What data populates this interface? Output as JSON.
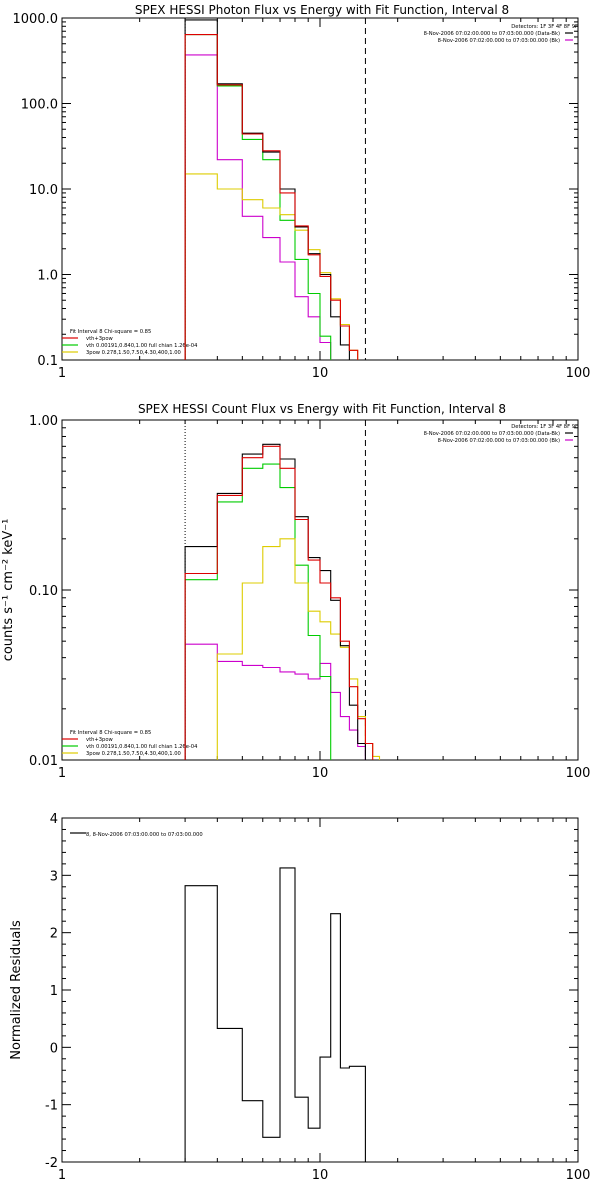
{
  "chart_data": [
    {
      "type": "line",
      "title": "SPEX HESSI Photon Flux vs Energy with Fit Function, Interval 8",
      "xlabel": "",
      "ylabel": "",
      "xscale": "log",
      "yscale": "log",
      "xlim": [
        1,
        100
      ],
      "ylim": [
        0.1,
        1000
      ],
      "xticks": [
        "1",
        "10",
        "100"
      ],
      "yticks": [
        "0.1",
        "1.0",
        "10.0",
        "100.0",
        "1000.0"
      ],
      "info_lines": [
        "Detectors: 1F 3F 4F 8F 9F",
        "8-Nov-2006 07:02:00.000 to 07:03:00.000 (Data-Bk)",
        "8-Nov-2006 07:02:00.000 to 07:03:00.000 (Bk)"
      ],
      "legend": [
        "Fit Interval 8   Chi-square = 0.85",
        "vth+3pow",
        "vth 0.00191,0.840,1.00   full chian 1.26e-04",
        "3pow 0.278,1.50,7.50,4.30,400,1.00"
      ],
      "edges": [
        3,
        4,
        5,
        6,
        7,
        8,
        9,
        10,
        11,
        12,
        13,
        14,
        15,
        16,
        17
      ],
      "threshold_lines": {
        "dotted_x": 3,
        "dashed_x": 15
      },
      "series": [
        {
          "name": "8-Nov-2006 07:02:00.000 to 07:03:00.000 (Data-Bk)",
          "color": "#000000",
          "values": [
            950,
            170,
            45,
            27,
            10,
            3.6,
            1.75,
            1.0,
            0.32,
            0.15,
            null,
            null,
            null,
            null
          ]
        },
        {
          "name": "8-Nov-2006 07:02:00.000 to 07:03:00.000 (Bk)",
          "color": "#cc00cc",
          "values": [
            370,
            22,
            4.8,
            2.7,
            1.4,
            0.55,
            0.32,
            0.16,
            null,
            null,
            null,
            null,
            null,
            null
          ]
        },
        {
          "name": "vth+3pow",
          "color": "#dd0000",
          "values": [
            640,
            165,
            44,
            28,
            9,
            3.7,
            1.7,
            0.95,
            0.5,
            0.25,
            0.13,
            null,
            null,
            null
          ]
        },
        {
          "name": "vth 0.00191,0.840,1.00   full chian 1.26e-04",
          "color": "#00cc00",
          "values": [
            640,
            160,
            38,
            22,
            4.3,
            1.5,
            0.6,
            0.19,
            null,
            null,
            null,
            null,
            null,
            null
          ]
        },
        {
          "name": "3pow 0.278,1.50,7.50,4.30,400,1.00",
          "color": "#ddcc00",
          "values": [
            15,
            10,
            7.5,
            6,
            5,
            3.3,
            1.95,
            1.05,
            0.52,
            0.26,
            0.13,
            null,
            null,
            null
          ]
        }
      ]
    },
    {
      "type": "line",
      "title": "SPEX HESSI Count Flux vs Energy with Fit Function, Interval 8",
      "xlabel": "",
      "ylabel": "counts s⁻¹ cm⁻² keV⁻¹",
      "xscale": "log",
      "yscale": "log",
      "xlim": [
        1,
        100
      ],
      "ylim": [
        0.01,
        1.0
      ],
      "xticks": [
        "1",
        "10",
        "100"
      ],
      "yticks": [
        "0.01",
        "0.10",
        "1.00"
      ],
      "info_lines": [
        "Detectors: 1F 3F 4F 8F 9F",
        "8-Nov-2006 07:02:00.000 to 07:03:00.000 (Data-Bk)",
        "8-Nov-2006 07:02:00.000 to 07:03:00.000 (Bk)"
      ],
      "legend": [
        "Fit Interval 8   Chi-square = 0.85",
        "vth+3pow",
        "vth 0.00191,0.840,1.00   full chian 1.26e-04",
        "3pow 0.278,1.50,7.50,4.30,400,1.00"
      ],
      "edges": [
        3,
        4,
        5,
        6,
        7,
        8,
        9,
        10,
        11,
        12,
        13,
        14,
        15,
        16,
        17
      ],
      "threshold_lines": {
        "dotted_x": 3,
        "dashed_x": 15
      },
      "series": [
        {
          "name": "8-Nov-2006 07:02:00.000 to 07:03:00.000 (Data-Bk)",
          "color": "#000000",
          "values": [
            0.18,
            0.37,
            0.63,
            0.72,
            0.59,
            0.27,
            0.155,
            0.13,
            0.087,
            0.047,
            0.021,
            0.0125,
            null,
            null
          ]
        },
        {
          "name": "8-Nov-2006 07:02:00.000 to 07:03:00.000 (Bk)",
          "color": "#cc00cc",
          "values": [
            0.048,
            0.038,
            0.036,
            0.035,
            0.033,
            0.032,
            0.03,
            0.037,
            0.025,
            0.018,
            0.015,
            0.012,
            null,
            null
          ]
        },
        {
          "name": "vth+3pow",
          "color": "#dd0000",
          "values": [
            0.125,
            0.36,
            0.6,
            0.7,
            0.52,
            0.26,
            0.15,
            0.11,
            0.09,
            0.05,
            0.027,
            0.0175,
            0.0125,
            null
          ]
        },
        {
          "name": "vth 0.00191,0.840,1.00   full chian 1.26e-04",
          "color": "#00cc00",
          "values": [
            0.115,
            0.33,
            0.52,
            0.55,
            0.4,
            0.14,
            0.054,
            0.031,
            null,
            null,
            null,
            null,
            null,
            null
          ]
        },
        {
          "name": "3pow 0.278,1.50,7.50,4.30,400,1.00",
          "color": "#ddcc00",
          "values": [
            null,
            0.042,
            0.11,
            0.18,
            0.2,
            0.11,
            0.075,
            0.065,
            0.055,
            0.046,
            0.03,
            0.018,
            0.0125,
            0.0105
          ]
        }
      ]
    },
    {
      "type": "line",
      "title": "",
      "xlabel": "",
      "ylabel": "Normalized Residuals",
      "xscale": "log",
      "yscale": "linear",
      "xlim": [
        1,
        100
      ],
      "ylim": [
        -2,
        4
      ],
      "xticks": [
        "1",
        "10",
        "100"
      ],
      "yticks": [
        "-2",
        "-1",
        "0",
        "1",
        "2",
        "3",
        "4"
      ],
      "info_lines": [],
      "legend": [
        "8,  8-Nov-2006 07:03:00.000 to 07:03:00.000"
      ],
      "edges": [
        3,
        4,
        5,
        6,
        7,
        8,
        9,
        10,
        11,
        12,
        13,
        14,
        15
      ],
      "threshold_lines": {},
      "series": [
        {
          "name": "8,  8-Nov-2006 07:03:00.000 to 07:03:00.000",
          "color": "#000000",
          "values": [
            2.82,
            0.33,
            -0.93,
            -1.57,
            3.13,
            -0.87,
            -1.41,
            -0.17,
            2.33,
            -0.36,
            -0.33,
            -0.33
          ]
        }
      ]
    }
  ]
}
